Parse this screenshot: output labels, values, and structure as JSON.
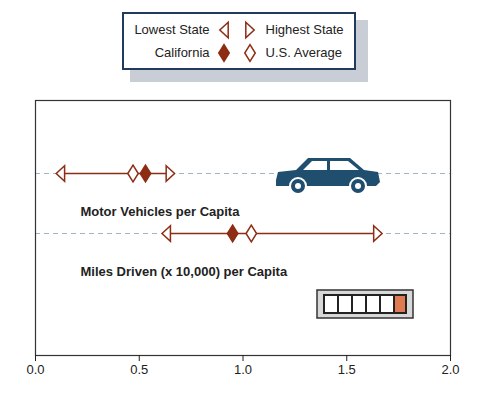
{
  "chart_data": {
    "type": "range",
    "categories": [
      "Motor Vehicles per Capita",
      "Miles Driven (x 10,000) per Capita"
    ],
    "series": [
      {
        "name": "Lowest State",
        "color": "#8c2d14",
        "marker": "triangle-left-open",
        "values": [
          0.12,
          0.63
        ]
      },
      {
        "name": "Highest State",
        "color": "#8c2d14",
        "marker": "triangle-right-open",
        "values": [
          0.65,
          1.65
        ]
      },
      {
        "name": "California",
        "color": "#8c2d14",
        "marker": "diamond",
        "values": [
          0.53,
          0.95
        ]
      },
      {
        "name": "U.S. Average",
        "color": "#8c2d14",
        "marker": "diamond-open",
        "values": [
          0.47,
          1.04
        ]
      }
    ],
    "xlim": [
      0,
      2
    ],
    "xticks": [
      {
        "value": 0,
        "label": "0.0"
      },
      {
        "value": 0.5,
        "label": "0.5"
      },
      {
        "value": 1,
        "label": "1.0"
      },
      {
        "value": 1.5,
        "label": "1.5"
      },
      {
        "value": 2,
        "label": "2.0"
      }
    ],
    "tick_labels": "x",
    "legend": "top"
  }
}
